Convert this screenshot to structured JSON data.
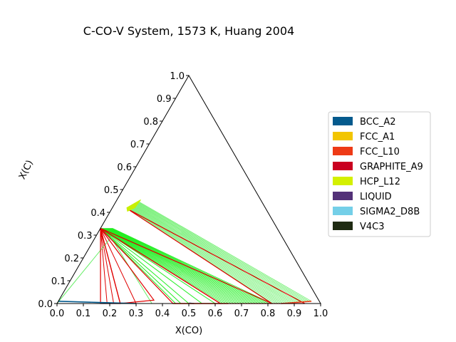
{
  "chart_data": {
    "type": "ternary",
    "title": "C-CO-V System, 1573 K, Huang 2004",
    "xlabel": "X(CO)",
    "ylabel": "X(C)",
    "xlim": [
      0,
      1
    ],
    "ylim": [
      0,
      1
    ],
    "xticks": [
      "0.0",
      "0.1",
      "0.2",
      "0.3",
      "0.4",
      "0.5",
      "0.6",
      "0.7",
      "0.8",
      "0.9",
      "1.0"
    ],
    "yticks": [
      "0.0",
      "0.1",
      "0.2",
      "0.3",
      "0.4",
      "0.5",
      "0.6",
      "0.7",
      "0.8",
      "0.9",
      "1.0"
    ],
    "legend": {
      "position": "right",
      "entries": [
        {
          "name": "BCC_A2",
          "color": "#045a8d"
        },
        {
          "name": "FCC_A1",
          "color": "#f2c500"
        },
        {
          "name": "FCC_L10",
          "color": "#ee3a16"
        },
        {
          "name": "GRAPHITE_A9",
          "color": "#c9001f"
        },
        {
          "name": "HCP_L12",
          "color": "#d4f000"
        },
        {
          "name": "LIQUID",
          "color": "#533178"
        },
        {
          "name": "SIGMA2_D8B",
          "color": "#74cfe8"
        },
        {
          "name": "V4C3",
          "color": "#1f2b13"
        }
      ]
    },
    "colors": {
      "tieline_red": "#e00000",
      "tieline_green": "#22ee22",
      "tieline_lightgreen": "#66ee66",
      "bcc_boundary": "#045a8d",
      "hcp_region": "#c8f000"
    },
    "phase_boundaries": [
      {
        "name": "BCC_A2",
        "color": "#045a8d",
        "points": [
          [
            0.0,
            0.01
          ],
          [
            0.15,
            0.005
          ],
          [
            0.3,
            0.0
          ]
        ]
      },
      {
        "name": "BCC_A2",
        "color": "#045a8d",
        "points": [
          [
            0.5,
            0.002
          ],
          [
            0.52,
            0.0
          ]
        ]
      },
      {
        "name": "FCC_L10",
        "color": "#ee3a16",
        "points": [
          [
            0.44,
            0.0
          ],
          [
            0.65,
            0.0
          ]
        ]
      },
      {
        "name": "FCC_L10",
        "color": "#ee3a16",
        "points": [
          [
            0.85,
            0.0
          ],
          [
            0.96,
            0.01
          ]
        ]
      }
    ],
    "tie_triangles": [
      {
        "color": "#e00000",
        "points": [
          [
            0.0,
            0.33
          ],
          [
            0.165,
            0.0
          ],
          [
            0.24,
            0.0
          ]
        ]
      },
      {
        "color": "#e00000",
        "points": [
          [
            0.0,
            0.33
          ],
          [
            0.24,
            0.0
          ],
          [
            0.36,
            0.015
          ]
        ]
      },
      {
        "color": "#e00000",
        "points": [
          [
            0.0,
            0.33
          ],
          [
            0.44,
            0.0
          ],
          [
            0.62,
            0.0
          ]
        ]
      },
      {
        "color": "#e00000",
        "points": [
          [
            0.0,
            0.33
          ],
          [
            0.62,
            0.0
          ],
          [
            0.815,
            0.0
          ]
        ]
      },
      {
        "color": "#e00000",
        "points": [
          [
            0.06,
            0.415
          ],
          [
            0.815,
            0.0
          ],
          [
            0.94,
            0.0
          ]
        ]
      }
    ],
    "tie_line_fans": [
      {
        "color": "#e00000",
        "from": [
          0.0,
          0.33
        ],
        "to": [
          [
            0.165,
            0.0
          ],
          [
            0.19,
            0.0
          ],
          [
            0.215,
            0.0
          ],
          [
            0.24,
            0.0
          ],
          [
            0.3,
            0.0
          ]
        ]
      },
      {
        "color": "#22ee22",
        "from": [
          0.0,
          0.33
        ],
        "to": [
          [
            0.45,
            0.0
          ],
          [
            0.47,
            0.0
          ],
          [
            0.5,
            0.0
          ],
          [
            0.55,
            0.0
          ],
          [
            0.6,
            0.0
          ]
        ]
      },
      {
        "color": "#22ee22",
        "from_line": [
          [
            0.0,
            0.33
          ],
          [
            0.045,
            0.33
          ]
        ],
        "to_line": [
          [
            0.62,
            0.0
          ],
          [
            0.815,
            0.0
          ]
        ],
        "count": 20
      },
      {
        "color": "#66ee66",
        "from_line": [
          [
            0.065,
            0.415
          ],
          [
            0.09,
            0.445
          ]
        ],
        "to_line": [
          [
            0.82,
            0.0
          ],
          [
            0.96,
            0.01
          ]
        ],
        "count": 18
      }
    ],
    "extra_lines": [
      {
        "color": "#66ee66",
        "points": [
          [
            0.0,
            0.0
          ],
          [
            0.06,
            0.29
          ]
        ]
      },
      {
        "color": "#66ee66",
        "points": [
          [
            0.06,
            0.29
          ],
          [
            0.36,
            0.0
          ]
        ]
      },
      {
        "color": "#e00000",
        "points": [
          [
            0.165,
            0.0
          ],
          [
            0.165,
            0.0
          ]
        ]
      }
    ]
  }
}
